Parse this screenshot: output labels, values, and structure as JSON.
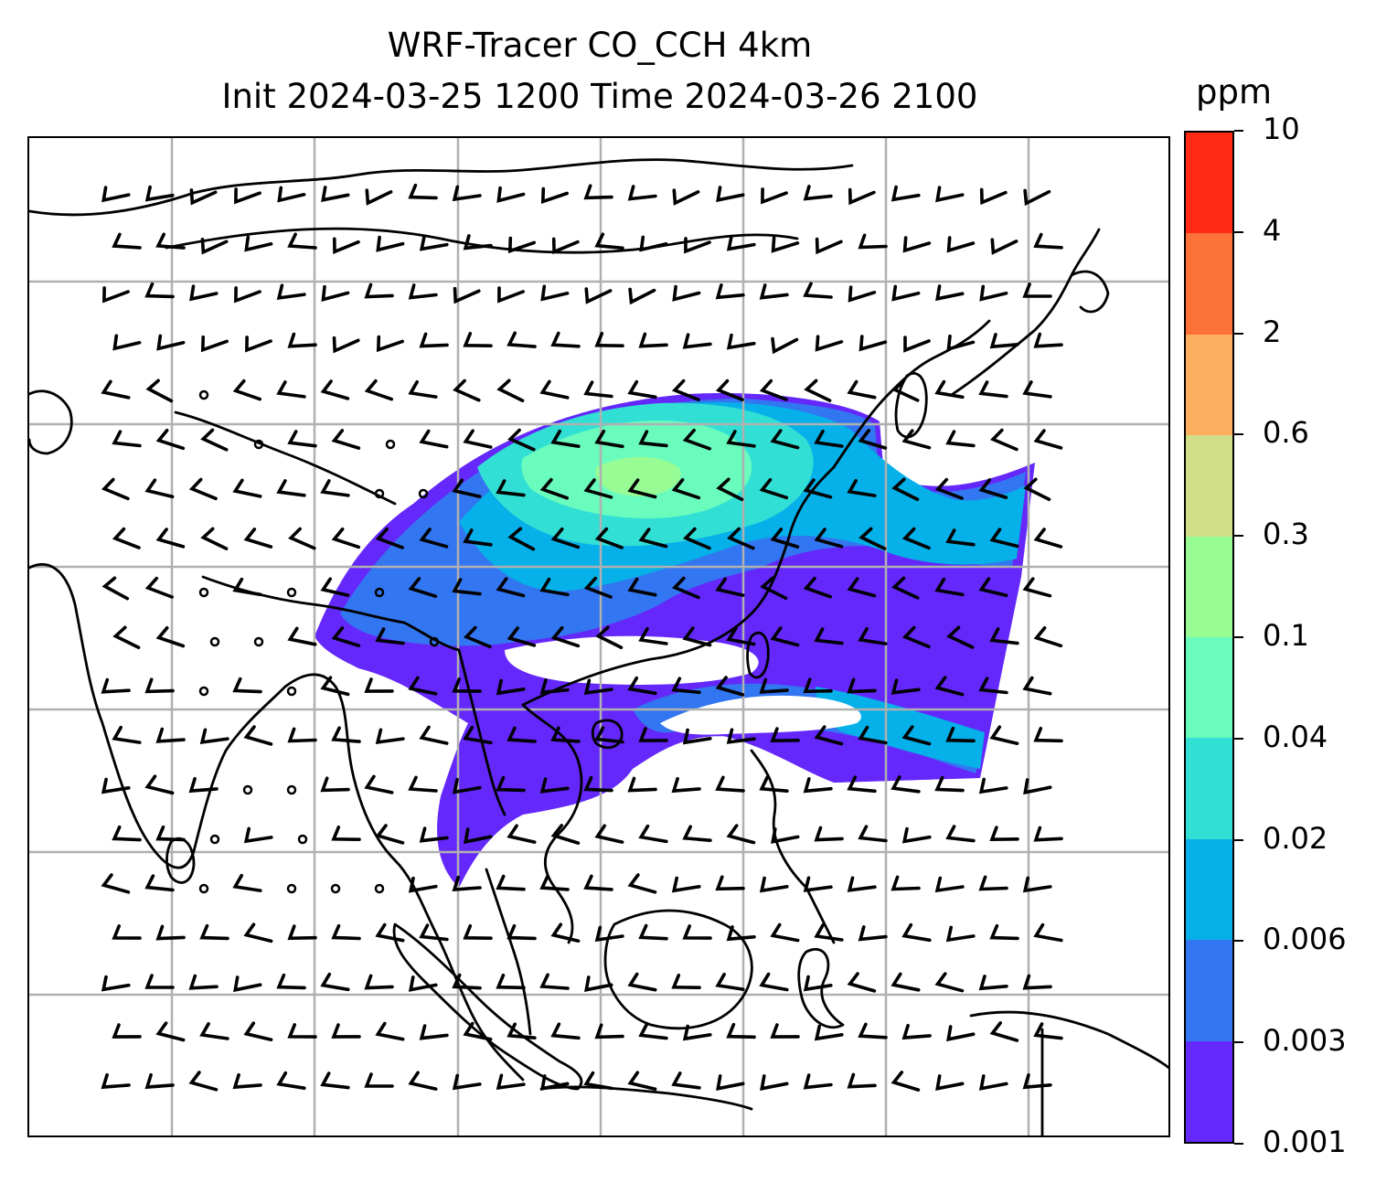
{
  "title": {
    "line1": "WRF-Tracer CO_CCH 4km",
    "line2": "Init 2024-03-25 1200 Time 2024-03-26 2100"
  },
  "colorbar": {
    "unit": "ppm",
    "tick_labels": [
      "0.001",
      "0.003",
      "0.006",
      "0.02",
      "0.04",
      "0.1",
      "0.3",
      "0.6",
      "2",
      "4",
      "10"
    ],
    "colors": [
      "#6428fb",
      "#3376f1",
      "#06b0e8",
      "#32dfd4",
      "#6afcbd",
      "#98fc95",
      "#d0df87",
      "#fdaf60",
      "#fd7239",
      "#fe2a16"
    ]
  },
  "map": {
    "gridlines": true,
    "features": [
      "coastlines",
      "country-borders",
      "wind-barbs",
      "tracer-concentration-fill"
    ]
  }
}
